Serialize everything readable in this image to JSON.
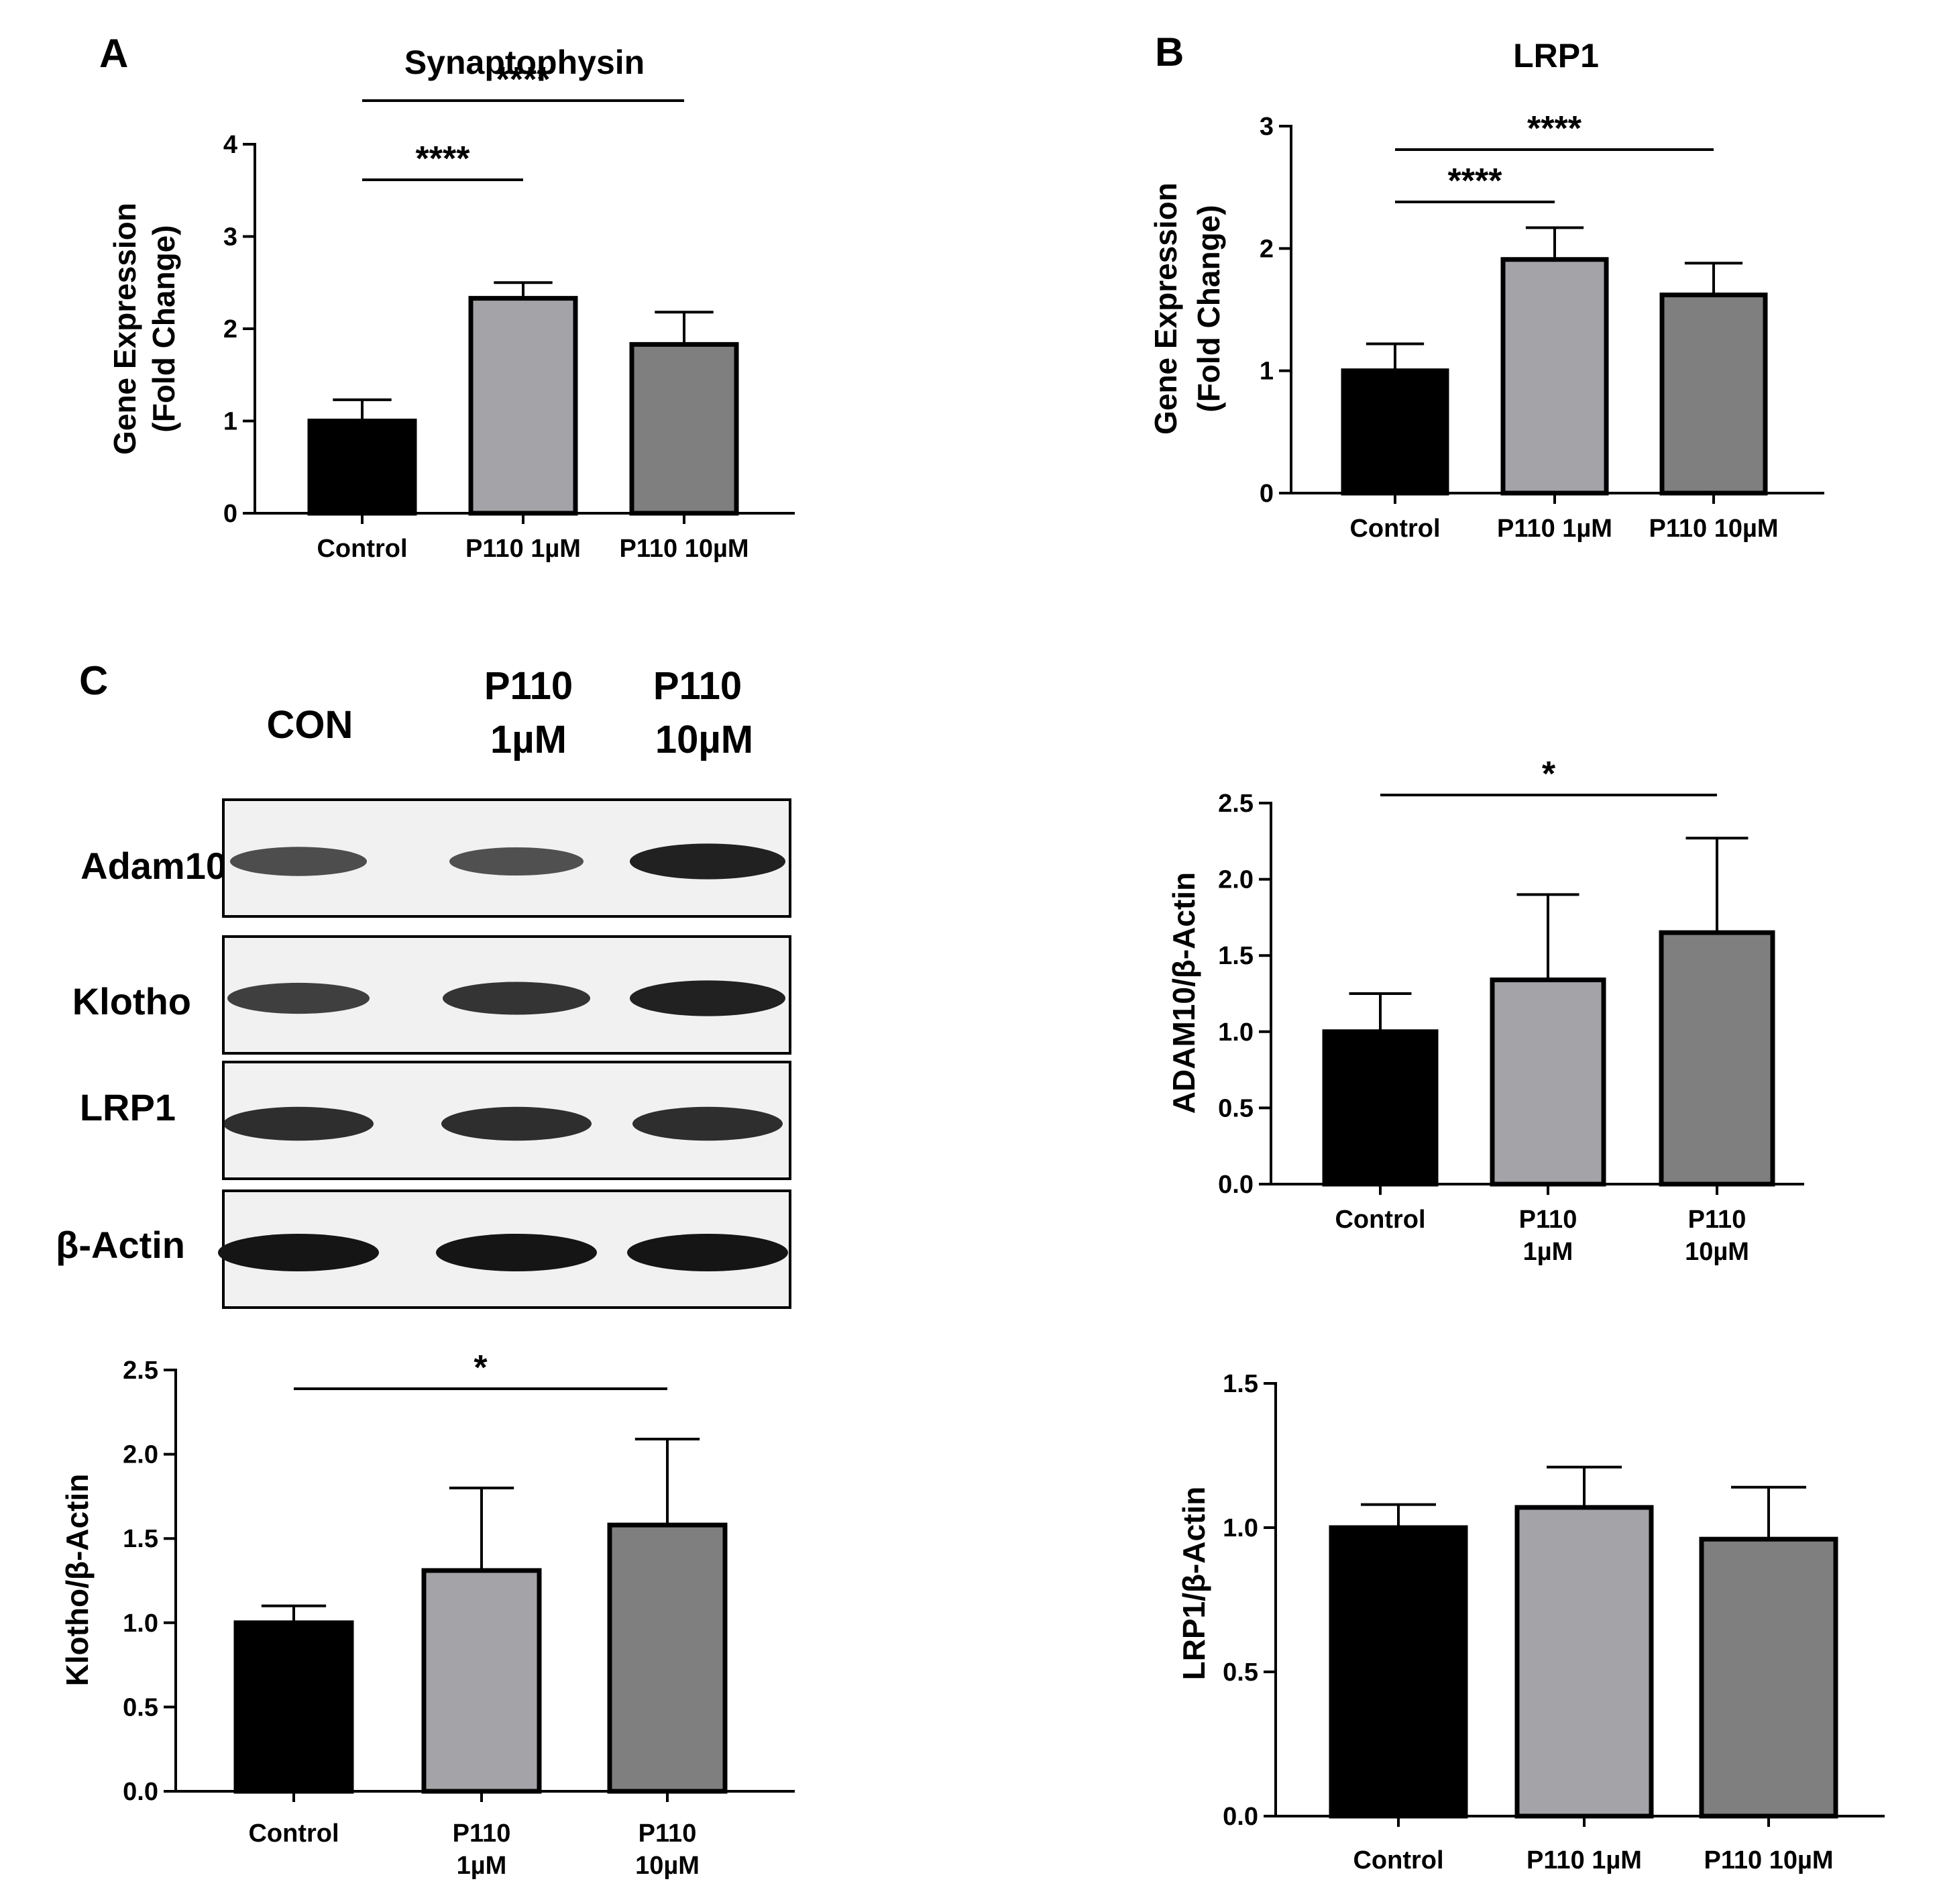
{
  "colors": {
    "bar_colors": [
      "#000000",
      "#a3a3a8",
      "#7f7f7f"
    ],
    "stroke": "#000000",
    "blot_bg": "#f1f1f1",
    "band": "#151515"
  },
  "panel_labels": {
    "a": "A",
    "b": "B",
    "c": "C"
  },
  "blot": {
    "lanes": [
      {
        "line1": "CON",
        "line2": ""
      },
      {
        "line1": "P110",
        "line2": "1µM"
      },
      {
        "line1": "P110",
        "line2": "10µM"
      }
    ],
    "rows": [
      {
        "label": "Adam10",
        "band_strength": [
          0.55,
          0.5,
          0.9
        ]
      },
      {
        "label": "Klotho",
        "band_strength": [
          0.65,
          0.75,
          0.9
        ]
      },
      {
        "label": "LRP1",
        "band_strength": [
          0.8,
          0.8,
          0.8
        ]
      },
      {
        "label": "β-Actin",
        "band_strength": [
          1.0,
          1.0,
          1.0
        ]
      }
    ]
  },
  "chart_data": [
    {
      "type": "bar",
      "title": "Synaptophysin",
      "ylabel_lines": [
        "Gene Expression",
        "(Fold Change)"
      ],
      "categories": [
        [
          "Control"
        ],
        [
          "P110 1µM"
        ],
        [
          "P110 10µM"
        ]
      ],
      "values": [
        1.0,
        2.33,
        1.83
      ],
      "errors": [
        0.23,
        0.17,
        0.35
      ],
      "ylim": [
        0,
        4
      ],
      "yticks": [
        "0",
        "1",
        "2",
        "3",
        "4"
      ],
      "significance": [
        {
          "from": 0,
          "to": 1,
          "label": "****"
        },
        {
          "from": 0,
          "to": 2,
          "label": "****"
        }
      ]
    },
    {
      "type": "bar",
      "title": "LRP1",
      "ylabel_lines": [
        "Gene Expression",
        "(Fold Change)"
      ],
      "categories": [
        [
          "Control"
        ],
        [
          "P110 1µM"
        ],
        [
          "P110 10µM"
        ]
      ],
      "values": [
        1.0,
        1.91,
        1.62
      ],
      "errors": [
        0.22,
        0.26,
        0.26
      ],
      "ylim": [
        0,
        3
      ],
      "yticks": [
        "0",
        "1",
        "2",
        "3"
      ],
      "significance": [
        {
          "from": 0,
          "to": 1,
          "label": "****"
        },
        {
          "from": 0,
          "to": 2,
          "label": "****"
        }
      ]
    },
    {
      "type": "bar",
      "title": "",
      "ylabel_lines": [
        "ADAM10/β-Actin"
      ],
      "categories": [
        [
          "Control"
        ],
        [
          "P110",
          "1µM"
        ],
        [
          "P110",
          "10µM"
        ]
      ],
      "values": [
        1.0,
        1.34,
        1.65
      ],
      "errors": [
        0.25,
        0.56,
        0.62
      ],
      "ylim": [
        0,
        2.5
      ],
      "yticks": [
        "0.0",
        "0.5",
        "1.0",
        "1.5",
        "2.0",
        "2.5"
      ],
      "significance": [
        {
          "from": 0,
          "to": 2,
          "label": "*"
        }
      ]
    },
    {
      "type": "bar",
      "title": "",
      "ylabel_lines": [
        "Klotho/β-Actin"
      ],
      "categories": [
        [
          "Control"
        ],
        [
          "P110",
          "1µM"
        ],
        [
          "P110",
          "10µM"
        ]
      ],
      "values": [
        1.0,
        1.31,
        1.58
      ],
      "errors": [
        0.1,
        0.49,
        0.51
      ],
      "ylim": [
        0,
        2.5
      ],
      "yticks": [
        "0.0",
        "0.5",
        "1.0",
        "1.5",
        "2.0",
        "2.5"
      ],
      "significance": [
        {
          "from": 0,
          "to": 2,
          "label": "*"
        }
      ]
    },
    {
      "type": "bar",
      "title": "",
      "ylabel_lines": [
        "LRP1/β-Actin"
      ],
      "categories": [
        [
          "Control"
        ],
        [
          "P110 1µM"
        ],
        [
          "P110 10µM"
        ]
      ],
      "values": [
        1.0,
        1.07,
        0.96
      ],
      "errors": [
        0.08,
        0.14,
        0.18
      ],
      "ylim": [
        0,
        1.5
      ],
      "yticks": [
        "0.0",
        "0.5",
        "1.0",
        "1.5"
      ],
      "significance": []
    }
  ]
}
